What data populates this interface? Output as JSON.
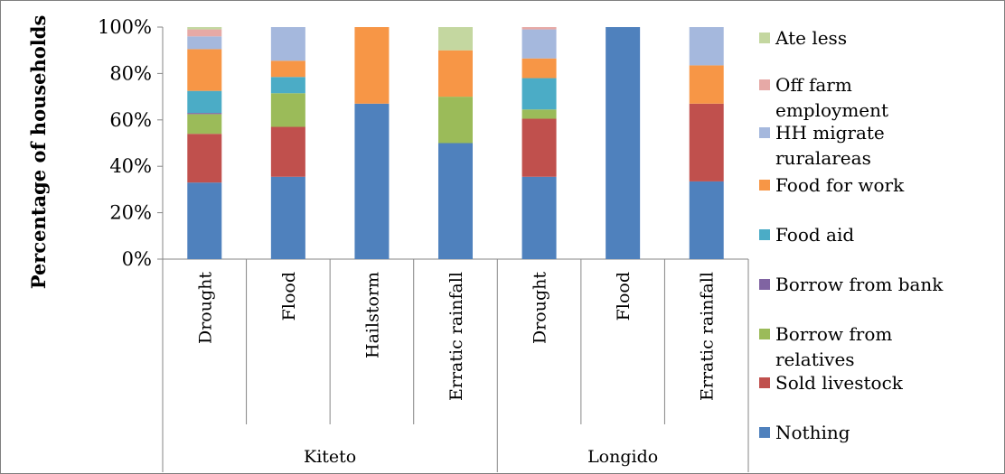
{
  "chart_data": {
    "type": "bar",
    "stacked": true,
    "percent_stacked": true,
    "title": "",
    "ylabel": "Percentage of households",
    "xlabel": "",
    "ylim": [
      0,
      100
    ],
    "yticks": [
      "0%",
      "20%",
      "40%",
      "60%",
      "80%",
      "100%"
    ],
    "grid": false,
    "legend_position": "right",
    "groups": [
      {
        "name": "Kiteto",
        "categories": [
          "Drought",
          "Flood",
          "Hailstorm",
          "Erratic rainfall"
        ]
      },
      {
        "name": "Longido",
        "categories": [
          "Drought",
          "Flood",
          "Erratic rainfall"
        ]
      }
    ],
    "categories": [
      "Drought",
      "Flood",
      "Hailstorm",
      "Erratic rainfall",
      "Drought",
      "Flood",
      "Erratic rainfall"
    ],
    "series": [
      {
        "name": "Nothing",
        "color": "#4f81bd",
        "values": [
          33,
          35.5,
          67,
          50,
          35.5,
          100,
          33.5
        ]
      },
      {
        "name": "Sold livestock",
        "color": "#c0504d",
        "values": [
          21,
          21.5,
          0,
          0,
          25,
          0,
          33.5
        ]
      },
      {
        "name": "Borrow from relatives",
        "color": "#9bbb59",
        "values": [
          8.5,
          14.5,
          0,
          20,
          4,
          0,
          0
        ]
      },
      {
        "name": "Borrow from bank",
        "color": "#8064a2",
        "values": [
          0.5,
          0,
          0,
          0,
          0,
          0,
          0
        ]
      },
      {
        "name": "Food aid",
        "color": "#4bacc6",
        "values": [
          9.5,
          7,
          0,
          0,
          13.5,
          0,
          0
        ]
      },
      {
        "name": "Food for work",
        "color": "#f79646",
        "values": [
          18,
          7,
          33,
          20,
          8.5,
          0,
          16.5
        ]
      },
      {
        "name": "HH migrate ruralareas",
        "color": "#a5b8dd",
        "values": [
          5.5,
          14.5,
          0,
          0,
          12.5,
          0,
          16.5
        ]
      },
      {
        "name": "Off farm employment",
        "color": "#e6a9a6",
        "values": [
          3,
          0,
          0,
          0,
          1,
          0,
          0
        ]
      },
      {
        "name": "Ate less",
        "color": "#c4d7a0",
        "values": [
          1,
          0,
          0,
          10,
          0,
          0,
          0
        ]
      }
    ],
    "legend_order": [
      "Ate less",
      "Off farm employment",
      "HH migrate ruralareas",
      "Food for work",
      "Food aid",
      "Borrow from bank",
      "Borrow from relatives",
      "Sold livestock",
      "Nothing"
    ]
  }
}
